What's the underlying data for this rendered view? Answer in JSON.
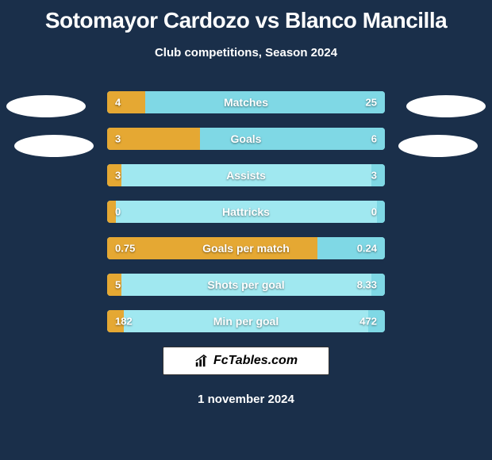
{
  "title": "Sotomayor Cardozo vs Blanco Mancilla",
  "subtitle": "Club competitions, Season 2024",
  "colors": {
    "background": "#1a2f4a",
    "bar_bg": "#a0e8f0",
    "bar_left": "#e5a833",
    "bar_right": "#7fd8e5",
    "text": "#ffffff"
  },
  "bars": [
    {
      "label": "Matches",
      "left_val": "4",
      "right_val": "25",
      "left_pct": 13.8,
      "right_pct": 86.2
    },
    {
      "label": "Goals",
      "left_val": "3",
      "right_val": "6",
      "left_pct": 33.3,
      "right_pct": 66.7
    },
    {
      "label": "Assists",
      "left_val": "3",
      "right_val": "3",
      "left_pct": 5,
      "right_pct": 5
    },
    {
      "label": "Hattricks",
      "left_val": "0",
      "right_val": "0",
      "left_pct": 3,
      "right_pct": 3
    },
    {
      "label": "Goals per match",
      "left_val": "0.75",
      "right_val": "0.24",
      "left_pct": 75.8,
      "right_pct": 24.2
    },
    {
      "label": "Shots per goal",
      "left_val": "5",
      "right_val": "8.33",
      "left_pct": 5,
      "right_pct": 5
    },
    {
      "label": "Min per goal",
      "left_val": "182",
      "right_val": "472",
      "left_pct": 6,
      "right_pct": 6
    }
  ],
  "logo_text": "FcTables.com",
  "date": "1 november 2024"
}
